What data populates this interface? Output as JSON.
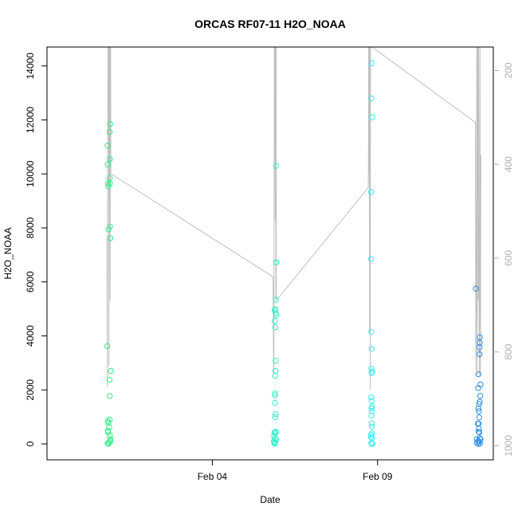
{
  "chart_data": {
    "type": "scatter",
    "title": "ORCAS RF07-11 H2O_NOAA",
    "xlabel": "Date",
    "ylabel": "H2O_NOAA",
    "x_ticks": [
      "Feb 04",
      "Feb 09"
    ],
    "y_ticks": [
      0,
      2000,
      4000,
      6000,
      8000,
      10000,
      12000,
      14000
    ],
    "y_right_ticks": [
      200,
      400,
      600,
      800,
      1000
    ],
    "xlim": [
      "2016-01-30T00:00",
      "2016-02-12T12:00"
    ],
    "ylim": [
      0,
      14700
    ],
    "y_right_lim": [
      1030,
      150
    ],
    "series": [
      {
        "color": "#33ee88",
        "points": [
          {
            "x": "2016-01-31T19:40",
            "y": 3620
          },
          {
            "x": "2016-01-31T20:00",
            "y": 11050
          },
          {
            "x": "2016-01-31T20:10",
            "y": 10350
          },
          {
            "x": "2016-01-31T20:20",
            "y": 9650
          },
          {
            "x": "2016-01-31T20:30",
            "y": 9550
          },
          {
            "x": "2016-01-31T20:40",
            "y": 7950
          },
          {
            "x": "2016-01-31T21:30",
            "y": 11550
          },
          {
            "x": "2016-01-31T21:50",
            "y": 11850
          },
          {
            "x": "2016-01-31T21:40",
            "y": 10550
          },
          {
            "x": "2016-01-31T21:40",
            "y": 9650
          },
          {
            "x": "2016-01-31T21:30",
            "y": 9850
          },
          {
            "x": "2016-01-31T21:40",
            "y": 8050
          },
          {
            "x": "2016-01-31T22:00",
            "y": 7620
          },
          {
            "x": "2016-01-31T22:20",
            "y": 2700
          },
          {
            "x": "2016-01-31T21:20",
            "y": 2380
          },
          {
            "x": "2016-01-31T21:30",
            "y": 1770
          },
          {
            "x": "2016-01-31T20:10",
            "y": 840
          },
          {
            "x": "2016-01-31T20:30",
            "y": 780
          },
          {
            "x": "2016-01-31T21:30",
            "y": 900
          },
          {
            "x": "2016-01-31T21:10",
            "y": 620
          },
          {
            "x": "2016-01-31T20:10",
            "y": 490
          },
          {
            "x": "2016-01-31T20:20",
            "y": 430
          },
          {
            "x": "2016-01-31T21:40",
            "y": 310
          },
          {
            "x": "2016-01-31T22:00",
            "y": 180
          },
          {
            "x": "2016-01-31T22:10",
            "y": 100
          },
          {
            "x": "2016-01-31T20:00",
            "y": 20
          },
          {
            "x": "2016-01-31T20:40",
            "y": 0
          },
          {
            "x": "2016-01-31T21:10",
            "y": 60
          }
        ]
      },
      {
        "color": "#33f0c8",
        "points": [
          {
            "x": "2016-02-05T21:20",
            "y": 4950
          },
          {
            "x": "2016-02-05T21:40",
            "y": 4990
          },
          {
            "x": "2016-02-05T21:20",
            "y": 4550
          },
          {
            "x": "2016-02-05T21:50",
            "y": 4320
          },
          {
            "x": "2016-02-05T22:00",
            "y": 4850
          },
          {
            "x": "2016-02-05T22:30",
            "y": 4780
          },
          {
            "x": "2016-02-05T22:10",
            "y": 5340
          },
          {
            "x": "2016-02-05T22:20",
            "y": 6720
          },
          {
            "x": "2016-02-05T22:30",
            "y": 6720
          },
          {
            "x": "2016-02-05T22:20",
            "y": 10300
          },
          {
            "x": "2016-02-05T22:00",
            "y": 3080
          },
          {
            "x": "2016-02-05T21:50",
            "y": 2700
          },
          {
            "x": "2016-02-05T21:40",
            "y": 2520
          },
          {
            "x": "2016-02-05T21:30",
            "y": 1870
          },
          {
            "x": "2016-02-05T21:40",
            "y": 1800
          },
          {
            "x": "2016-02-05T21:30",
            "y": 1520
          },
          {
            "x": "2016-02-05T22:00",
            "y": 1100
          },
          {
            "x": "2016-02-05T21:40",
            "y": 990
          },
          {
            "x": "2016-02-05T21:10",
            "y": 430
          },
          {
            "x": "2016-02-05T21:40",
            "y": 390
          },
          {
            "x": "2016-02-05T22:10",
            "y": 450
          },
          {
            "x": "2016-02-05T20:50",
            "y": 300
          },
          {
            "x": "2016-02-05T21:20",
            "y": 200
          },
          {
            "x": "2016-02-05T22:20",
            "y": 160
          },
          {
            "x": "2016-02-05T20:40",
            "y": 100
          },
          {
            "x": "2016-02-05T21:00",
            "y": 40
          },
          {
            "x": "2016-02-05T21:30",
            "y": 60
          },
          {
            "x": "2016-02-05T21:20",
            "y": 10
          }
        ]
      },
      {
        "color": "#33eef0",
        "points": [
          {
            "x": "2016-02-08T19:40",
            "y": 14100
          },
          {
            "x": "2016-02-08T19:30",
            "y": 12800
          },
          {
            "x": "2016-02-08T20:10",
            "y": 12100
          },
          {
            "x": "2016-02-08T19:20",
            "y": 9330
          },
          {
            "x": "2016-02-08T19:20",
            "y": 6850
          },
          {
            "x": "2016-02-08T19:30",
            "y": 4150
          },
          {
            "x": "2016-02-08T19:40",
            "y": 3520
          },
          {
            "x": "2016-02-08T19:30",
            "y": 2780
          },
          {
            "x": "2016-02-08T19:40",
            "y": 2620
          },
          {
            "x": "2016-02-08T20:10",
            "y": 2680
          },
          {
            "x": "2016-02-08T19:20",
            "y": 1720
          },
          {
            "x": "2016-02-08T19:40",
            "y": 1590
          },
          {
            "x": "2016-02-08T19:30",
            "y": 1310
          },
          {
            "x": "2016-02-08T20:00",
            "y": 1380
          },
          {
            "x": "2016-02-08T19:50",
            "y": 1220
          },
          {
            "x": "2016-02-08T19:30",
            "y": 1050
          },
          {
            "x": "2016-02-08T19:40",
            "y": 760
          },
          {
            "x": "2016-02-08T19:50",
            "y": 640
          },
          {
            "x": "2016-02-08T19:20",
            "y": 330
          },
          {
            "x": "2016-02-08T19:50",
            "y": 390
          },
          {
            "x": "2016-02-08T19:10",
            "y": 250
          },
          {
            "x": "2016-02-08T20:00",
            "y": 210
          },
          {
            "x": "2016-02-08T19:30",
            "y": 30
          },
          {
            "x": "2016-02-08T19:40",
            "y": 0
          },
          {
            "x": "2016-02-08T20:10",
            "y": 10
          }
        ]
      },
      {
        "color": "#2f8ee8",
        "points": [
          {
            "x": "2016-02-11T23:20",
            "y": 5750
          },
          {
            "x": "2016-02-12T02:10",
            "y": 3950
          },
          {
            "x": "2016-02-12T02:10",
            "y": 3750
          },
          {
            "x": "2016-02-12T02:00",
            "y": 3580
          },
          {
            "x": "2016-02-12T02:00",
            "y": 3320
          },
          {
            "x": "2016-02-12T01:10",
            "y": 2580
          },
          {
            "x": "2016-02-12T02:40",
            "y": 2200
          },
          {
            "x": "2016-02-12T01:00",
            "y": 2070
          },
          {
            "x": "2016-02-12T02:30",
            "y": 1780
          },
          {
            "x": "2016-02-12T02:10",
            "y": 1560
          },
          {
            "x": "2016-02-12T01:40",
            "y": 1480
          },
          {
            "x": "2016-02-12T01:10",
            "y": 1310
          },
          {
            "x": "2016-02-12T01:30",
            "y": 1210
          },
          {
            "x": "2016-02-12T01:50",
            "y": 980
          },
          {
            "x": "2016-02-12T00:50",
            "y": 750
          },
          {
            "x": "2016-02-12T01:20",
            "y": 750
          },
          {
            "x": "2016-02-12T01:30",
            "y": 560
          },
          {
            "x": "2016-02-12T01:20",
            "y": 450
          },
          {
            "x": "2016-02-12T01:50",
            "y": 430
          },
          {
            "x": "2016-02-12T02:10",
            "y": 210
          },
          {
            "x": "2016-02-12T02:40",
            "y": 170
          },
          {
            "x": "2016-02-12T00:00",
            "y": 170
          },
          {
            "x": "2016-02-12T01:00",
            "y": 110
          },
          {
            "x": "2016-02-12T01:40",
            "y": 90
          },
          {
            "x": "2016-02-12T00:10",
            "y": 40
          },
          {
            "x": "2016-02-12T02:20",
            "y": 20
          },
          {
            "x": "2016-02-12T01:10",
            "y": 0
          }
        ]
      }
    ],
    "pressure_trace": {
      "color": "#c0c0c0",
      "points": [
        [
          "2016-01-31T19:30",
          560
        ],
        [
          "2016-01-31T19:40",
          780
        ],
        [
          "2016-01-31T19:50",
          875
        ],
        [
          "2016-01-31T20:00",
          470
        ],
        [
          "2016-01-31T20:10",
          260
        ],
        [
          "2016-01-31T20:20",
          150
        ],
        [
          "2016-01-31T20:30",
          150
        ],
        [
          "2016-01-31T20:40",
          150
        ],
        [
          "2016-01-31T20:50",
          400
        ],
        [
          "2016-01-31T21:00",
          830
        ],
        [
          "2016-01-31T21:10",
          150
        ],
        [
          "2016-01-31T21:20",
          150
        ],
        [
          "2016-01-31T21:30",
          150
        ],
        [
          "2016-01-31T21:40",
          150
        ],
        [
          "2016-01-31T21:50",
          690
        ],
        [
          "2016-01-31T22:00",
          150
        ],
        [
          "2016-01-31T22:10",
          150
        ],
        [
          "2016-01-31T22:20",
          420
        ],
        [
          "2016-02-05T20:10",
          640
        ],
        [
          "2016-02-05T20:20",
          760
        ],
        [
          "2016-02-05T20:30",
          845
        ],
        [
          "2016-02-05T20:40",
          845
        ],
        [
          "2016-02-05T20:50",
          560
        ],
        [
          "2016-02-05T21:00",
          150
        ],
        [
          "2016-02-05T21:10",
          150
        ],
        [
          "2016-02-05T21:20",
          330
        ],
        [
          "2016-02-05T21:30",
          150
        ],
        [
          "2016-02-05T21:40",
          520
        ],
        [
          "2016-02-05T21:50",
          150
        ],
        [
          "2016-02-05T22:00",
          150
        ],
        [
          "2016-02-05T22:10",
          690
        ],
        [
          "2016-02-05T22:20",
          150
        ],
        [
          "2016-02-05T22:30",
          690
        ],
        [
          "2016-02-08T17:10",
          450
        ],
        [
          "2016-02-08T17:20",
          420
        ],
        [
          "2016-02-08T17:30",
          150
        ],
        [
          "2016-02-08T17:40",
          420
        ],
        [
          "2016-02-08T17:50",
          150
        ],
        [
          "2016-02-08T18:00",
          150
        ],
        [
          "2016-02-08T18:10",
          760
        ],
        [
          "2016-02-08T18:20",
          150
        ],
        [
          "2016-02-08T18:30",
          150
        ],
        [
          "2016-02-08T18:40",
          880
        ],
        [
          "2016-02-08T18:50",
          150
        ],
        [
          "2016-02-08T19:00",
          150
        ],
        [
          "2016-02-08T19:10",
          150
        ],
        [
          "2016-02-08T19:20",
          150
        ],
        [
          "2016-02-08T19:30",
          150
        ],
        [
          "2016-02-08T19:40",
          150
        ],
        [
          "2016-02-08T20:00",
          150
        ],
        [
          "2016-02-11T22:40",
          310
        ],
        [
          "2016-02-11T23:00",
          310
        ],
        [
          "2016-02-11T23:20",
          840
        ],
        [
          "2016-02-11T23:40",
          680
        ],
        [
          "2016-02-12T00:00",
          150
        ],
        [
          "2016-02-12T00:20",
          850
        ],
        [
          "2016-02-12T00:40",
          150
        ],
        [
          "2016-02-12T01:00",
          150
        ],
        [
          "2016-02-12T01:10",
          690
        ],
        [
          "2016-02-12T01:20",
          150
        ],
        [
          "2016-02-12T01:40",
          710
        ],
        [
          "2016-02-12T02:00",
          850
        ],
        [
          "2016-02-12T02:20",
          150
        ],
        [
          "2016-02-12T02:40",
          850
        ],
        [
          "2016-02-12T03:00",
          380
        ]
      ]
    }
  }
}
